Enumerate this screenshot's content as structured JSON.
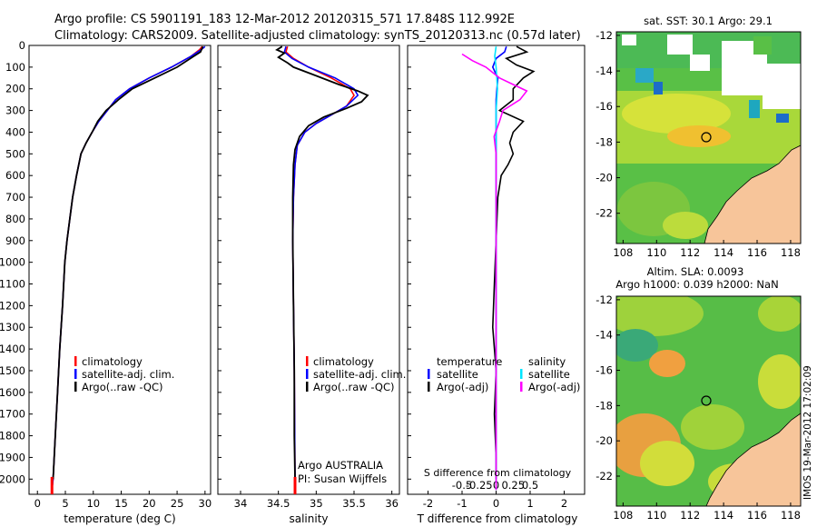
{
  "title": {
    "line1": "Argo profile: CS 5901191_183 12-Mar-2012 20120315_571 17.848S 112.992E",
    "line2": "Climatology: CARS2009. Satellite-adjusted climatology: synTS_20120313.nc (0.57d later)"
  },
  "colors": {
    "climatology": "#ff0000",
    "satellite": "#0000ff",
    "argo": "#000000",
    "salinity_sat": "#00e5ff",
    "salinity_argo": "#ff00ff",
    "land": "#f7c59a"
  },
  "depth_axis": {
    "ticks": [
      "0",
      "100",
      "200",
      "300",
      "400",
      "500",
      "600",
      "700",
      "800",
      "900",
      "1000",
      "1100",
      "1200",
      "1300",
      "1400",
      "1500",
      "1600",
      "1700",
      "1800",
      "1900",
      "2000"
    ],
    "ylim": [
      0,
      2070
    ]
  },
  "chart_data": [
    {
      "type": "line",
      "name": "temperature",
      "xlabel": "temperature (deg C)",
      "xlim": [
        -1.5,
        31
      ],
      "xticks": [
        "0",
        "5",
        "10",
        "15",
        "20",
        "25",
        "30"
      ],
      "legend": [
        "climatology",
        "satellite-adj. clim.",
        "Argo(..raw -QC)"
      ],
      "series": [
        {
          "name": "climatology",
          "color": "#ff0000",
          "points": [
            [
              29.5,
              5
            ],
            [
              29,
              20
            ],
            [
              27.5,
              50
            ],
            [
              24,
              100
            ],
            [
              20,
              150
            ],
            [
              16.5,
              200
            ],
            [
              14,
              250
            ],
            [
              12.5,
              300
            ],
            [
              11,
              350
            ],
            [
              9.8,
              400
            ],
            [
              8.7,
              450
            ],
            [
              7.8,
              500
            ],
            [
              7,
              600
            ],
            [
              6.3,
              700
            ],
            [
              5.8,
              800
            ],
            [
              5.3,
              900
            ],
            [
              4.9,
              1000
            ],
            [
              4.5,
              1200
            ],
            [
              4,
              1400
            ],
            [
              3.6,
              1600
            ],
            [
              3.2,
              1800
            ],
            [
              2.8,
              2000
            ],
            [
              2.6,
              2050
            ]
          ]
        },
        {
          "name": "satellite-adj. clim.",
          "color": "#0000ff",
          "points": [
            [
              30,
              5
            ],
            [
              29.3,
              20
            ],
            [
              27.5,
              50
            ],
            [
              24,
              100
            ],
            [
              20,
              150
            ],
            [
              16.5,
              200
            ],
            [
              14,
              250
            ],
            [
              12.5,
              300
            ],
            [
              11,
              350
            ],
            [
              9.8,
              400
            ],
            [
              8.7,
              450
            ],
            [
              7.8,
              500
            ],
            [
              7,
              600
            ],
            [
              6.3,
              700
            ],
            [
              5.8,
              800
            ],
            [
              5.3,
              900
            ],
            [
              4.9,
              1000
            ],
            [
              4.5,
              1200
            ],
            [
              4,
              1400
            ],
            [
              3.6,
              1600
            ],
            [
              3.2,
              1800
            ],
            [
              2.8,
              2000
            ],
            [
              2.6,
              2050
            ]
          ]
        },
        {
          "name": "Argo(..raw -QC)",
          "color": "#000000",
          "points": [
            [
              29.6,
              5
            ],
            [
              29.2,
              30
            ],
            [
              28,
              50
            ],
            [
              25,
              100
            ],
            [
              21,
              150
            ],
            [
              17,
              200
            ],
            [
              14.5,
              250
            ],
            [
              12.3,
              300
            ],
            [
              10.8,
              350
            ],
            [
              9.8,
              400
            ],
            [
              8.7,
              450
            ],
            [
              7.8,
              500
            ],
            [
              7,
              600
            ],
            [
              6.3,
              700
            ],
            [
              5.8,
              800
            ],
            [
              5.3,
              900
            ],
            [
              4.9,
              1000
            ],
            [
              4.5,
              1200
            ],
            [
              4,
              1400
            ],
            [
              3.6,
              1600
            ],
            [
              3.2,
              1800
            ],
            [
              2.8,
              2000
            ]
          ]
        }
      ]
    },
    {
      "type": "line",
      "name": "salinity",
      "xlabel": "salinity",
      "xlim": [
        33.7,
        36.1
      ],
      "xticks": [
        "34",
        "34.5",
        "35",
        "35.5",
        "36"
      ],
      "legend": [
        "climatology",
        "satellite-adj. clim.",
        "Argo(..raw -QC)"
      ],
      "annotation": [
        "Argo AUSTRALIA",
        "PI: Susan Wijffels"
      ],
      "series": [
        {
          "name": "climatology",
          "color": "#ff0000",
          "points": [
            [
              34.62,
              5
            ],
            [
              34.6,
              30
            ],
            [
              34.7,
              60
            ],
            [
              34.9,
              100
            ],
            [
              35.2,
              150
            ],
            [
              35.45,
              200
            ],
            [
              35.5,
              230
            ],
            [
              35.4,
              280
            ],
            [
              35.2,
              320
            ],
            [
              35.0,
              360
            ],
            [
              34.85,
              400
            ],
            [
              34.75,
              460
            ],
            [
              34.72,
              550
            ],
            [
              34.7,
              700
            ],
            [
              34.69,
              900
            ],
            [
              34.7,
              1200
            ],
            [
              34.71,
              1500
            ],
            [
              34.72,
              2000
            ],
            [
              34.72,
              2050
            ]
          ]
        },
        {
          "name": "satellite-adj. clim.",
          "color": "#0000ff",
          "points": [
            [
              34.6,
              5
            ],
            [
              34.58,
              30
            ],
            [
              34.68,
              60
            ],
            [
              34.9,
              100
            ],
            [
              35.25,
              150
            ],
            [
              35.5,
              200
            ],
            [
              35.55,
              230
            ],
            [
              35.4,
              280
            ],
            [
              35.2,
              320
            ],
            [
              35.0,
              360
            ],
            [
              34.85,
              400
            ],
            [
              34.75,
              460
            ],
            [
              34.72,
              550
            ],
            [
              34.7,
              700
            ],
            [
              34.69,
              900
            ],
            [
              34.7,
              1200
            ],
            [
              34.71,
              1500
            ],
            [
              34.72,
              2000
            ],
            [
              34.72,
              2050
            ]
          ]
        },
        {
          "name": "Argo(..raw -QC)",
          "color": "#000000",
          "points": [
            [
              34.55,
              5
            ],
            [
              34.48,
              20
            ],
            [
              34.58,
              35
            ],
            [
              34.5,
              55
            ],
            [
              34.62,
              80
            ],
            [
              34.7,
              100
            ],
            [
              35.0,
              140
            ],
            [
              35.3,
              180
            ],
            [
              35.55,
              210
            ],
            [
              35.68,
              230
            ],
            [
              35.6,
              260
            ],
            [
              35.4,
              290
            ],
            [
              35.1,
              330
            ],
            [
              34.9,
              370
            ],
            [
              34.78,
              420
            ],
            [
              34.72,
              480
            ],
            [
              34.7,
              550
            ],
            [
              34.69,
              700
            ],
            [
              34.69,
              900
            ],
            [
              34.7,
              1200
            ],
            [
              34.71,
              1500
            ],
            [
              34.71,
              1800
            ],
            [
              34.72,
              2000
            ]
          ]
        }
      ]
    },
    {
      "type": "line",
      "name": "difference",
      "xlabel": "T difference from climatology",
      "xlabel_top": "S difference from climatology",
      "xlim_T": [
        -2.6,
        2.6
      ],
      "xticks_T": [
        "-2",
        "-1",
        "0",
        "1",
        "2"
      ],
      "xticks_S": [
        "-0.5",
        "-0.25",
        "0",
        "0.25",
        "0.5"
      ],
      "legend_temperature": {
        "heading": "temperature",
        "items": [
          "satellite",
          "Argo(-adj)"
        ]
      },
      "legend_salinity": {
        "heading": "salinity",
        "items": [
          "satellite",
          "Argo(-adj)"
        ]
      },
      "series": [
        {
          "name": "temperature satellite",
          "color": "#0000ff",
          "points": [
            [
              0.3,
              5
            ],
            [
              0.25,
              30
            ],
            [
              0,
              60
            ],
            [
              -0.1,
              100
            ],
            [
              0.05,
              150
            ],
            [
              0,
              250
            ],
            [
              0,
              400
            ],
            [
              0,
              600
            ],
            [
              0,
              1000
            ],
            [
              0,
              1500
            ],
            [
              0,
              2000
            ]
          ]
        },
        {
          "name": "temperature Argo(-adj)",
          "color": "#000000",
          "points": [
            [
              0.6,
              5
            ],
            [
              0.9,
              30
            ],
            [
              0.3,
              60
            ],
            [
              0.6,
              90
            ],
            [
              1.1,
              120
            ],
            [
              0.8,
              150
            ],
            [
              0.5,
              200
            ],
            [
              0.5,
              250
            ],
            [
              0.1,
              300
            ],
            [
              0.8,
              350
            ],
            [
              0.5,
              400
            ],
            [
              0.4,
              450
            ],
            [
              0.5,
              500
            ],
            [
              0.35,
              550
            ],
            [
              0.15,
              600
            ],
            [
              0.05,
              700
            ],
            [
              0,
              900
            ],
            [
              -0.05,
              1100
            ],
            [
              -0.1,
              1300
            ],
            [
              0,
              1500
            ],
            [
              -0.05,
              1700
            ],
            [
              0,
              1900
            ],
            [
              0,
              2000
            ]
          ]
        },
        {
          "name": "salinity satellite",
          "color": "#00e5ff",
          "points": [
            [
              0,
              5
            ],
            [
              -0.02,
              50
            ],
            [
              0,
              100
            ],
            [
              0.02,
              200
            ],
            [
              0,
              300
            ],
            [
              0,
              400
            ],
            [
              0,
              600
            ],
            [
              0,
              1000
            ],
            [
              0,
              1500
            ],
            [
              0,
              2000
            ],
            [
              0,
              2050
            ]
          ]
        },
        {
          "name": "salinity Argo(-adj)",
          "color": "#ff00ff",
          "points": [
            [
              -0.5,
              40
            ],
            [
              -0.35,
              70
            ],
            [
              -0.15,
              100
            ],
            [
              0.05,
              150
            ],
            [
              0.25,
              180
            ],
            [
              0.45,
              210
            ],
            [
              0.35,
              250
            ],
            [
              0.1,
              300
            ],
            [
              0.05,
              350
            ],
            [
              -0.03,
              420
            ],
            [
              0,
              500
            ],
            [
              0,
              600
            ],
            [
              0,
              800
            ],
            [
              0,
              1000
            ],
            [
              0,
              1400
            ],
            [
              0,
              1800
            ],
            [
              0,
              2050
            ]
          ]
        }
      ]
    },
    {
      "type": "heatmap",
      "name": "sst_map",
      "title": "sat. SST: 30.1 Argo: 29.1",
      "xticks": [
        "108",
        "110",
        "112",
        "114",
        "116",
        "118"
      ],
      "yticks": [
        "-12",
        "-14",
        "-16",
        "-18",
        "-20",
        "-22"
      ],
      "xlim": [
        107.6,
        118.6
      ],
      "ylim": [
        -23.7,
        -11.8
      ],
      "marker": {
        "lon": 112.99,
        "lat": -17.85
      }
    },
    {
      "type": "heatmap",
      "name": "sla_map",
      "title": "Altim. SLA: 0.0093",
      "subtitle": "Argo h1000: 0.039 h2000: NaN",
      "xticks": [
        "108",
        "110",
        "112",
        "114",
        "116",
        "118"
      ],
      "yticks": [
        "-12",
        "-14",
        "-16",
        "-18",
        "-20",
        "-22"
      ],
      "xlim": [
        107.6,
        118.6
      ],
      "ylim": [
        -23.7,
        -11.8
      ],
      "marker": {
        "lon": 112.99,
        "lat": -17.85
      }
    }
  ],
  "side_label": "IMOS 19-Mar-2012 17:02:09"
}
